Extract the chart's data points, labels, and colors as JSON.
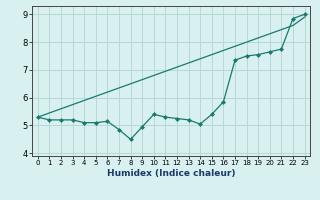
{
  "xlabel": "Humidex (Indice chaleur)",
  "x_values": [
    0,
    1,
    2,
    3,
    4,
    5,
    6,
    7,
    8,
    9,
    10,
    11,
    12,
    13,
    14,
    15,
    16,
    17,
    18,
    19,
    20,
    21,
    22,
    23
  ],
  "y_data": [
    5.3,
    5.2,
    5.2,
    5.2,
    5.1,
    5.1,
    5.15,
    4.85,
    4.5,
    4.95,
    5.4,
    5.3,
    5.25,
    5.2,
    5.05,
    5.4,
    5.85,
    7.35,
    7.5,
    7.55,
    7.65,
    7.75,
    8.85,
    9.0
  ],
  "y_linear": [
    5.3,
    5.45,
    5.6,
    5.75,
    5.9,
    6.05,
    6.2,
    6.35,
    6.5,
    6.65,
    6.8,
    6.95,
    7.1,
    7.25,
    7.4,
    7.55,
    7.7,
    7.85,
    8.0,
    8.15,
    8.3,
    8.45,
    8.6,
    8.9
  ],
  "line_color": "#1a7a6e",
  "bg_color": "#d8f0f0",
  "grid_color": "#b8d8d8",
  "ylim": [
    3.9,
    9.3
  ],
  "xlim": [
    -0.5,
    23.5
  ],
  "yticks": [
    4,
    5,
    6,
    7,
    8,
    9
  ],
  "xticks": [
    0,
    1,
    2,
    3,
    4,
    5,
    6,
    7,
    8,
    9,
    10,
    11,
    12,
    13,
    14,
    15,
    16,
    17,
    18,
    19,
    20,
    21,
    22,
    23
  ],
  "xlabel_color": "#1a3a6a",
  "xlabel_fontsize": 6.5,
  "tick_fontsize": 5.0,
  "ytick_fontsize": 6.0
}
